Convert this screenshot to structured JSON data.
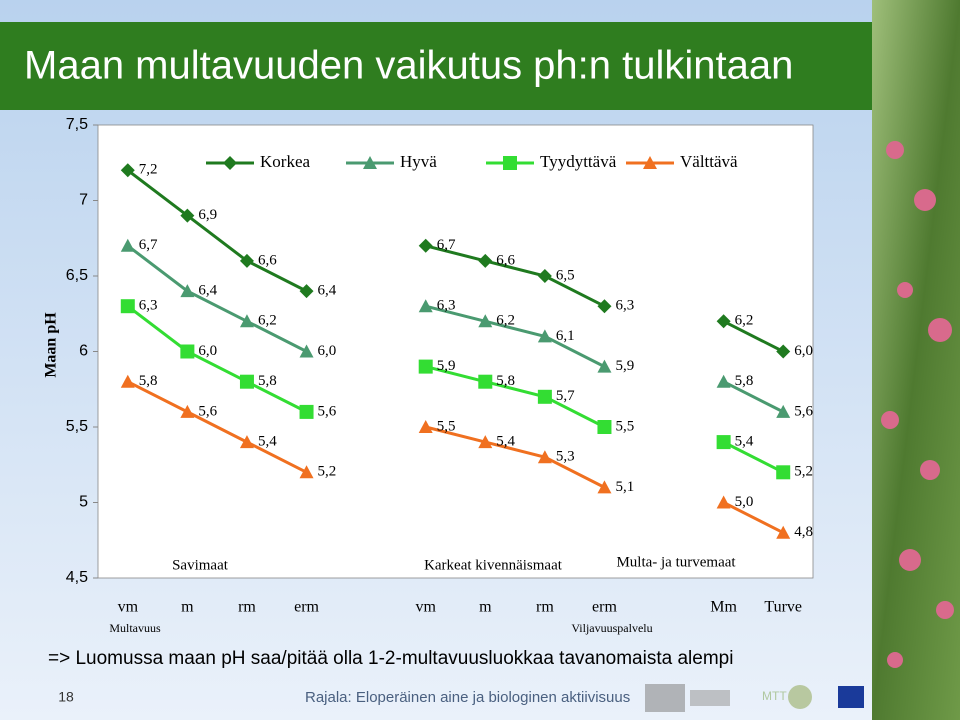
{
  "header": {
    "title": "Maan multavuuden vaikutus ph:n tulkintaan"
  },
  "chart_data": {
    "type": "line",
    "y_label": "Maan pH",
    "categories": [
      "vm",
      "m",
      "rm",
      "erm",
      null,
      "vm",
      "m",
      "rm",
      "erm",
      null,
      "Mm",
      "Turve"
    ],
    "ylim": [
      4.5,
      7.5
    ],
    "yticks": [
      {
        "value": 4.5,
        "label": "4,5"
      },
      5,
      {
        "value": 5.5,
        "label": "5,5"
      },
      6,
      {
        "value": 6.5,
        "label": "6,5"
      },
      7,
      {
        "value": 7.5,
        "label": "7,5"
      }
    ],
    "grid": false,
    "legend": "top",
    "series": [
      {
        "name": "Korkea",
        "color": "#1f7a1f",
        "marker": "diamond",
        "values": [
          7.2,
          6.9,
          6.6,
          6.4,
          null,
          6.7,
          6.6,
          6.5,
          6.3,
          null,
          6.2,
          6.0
        ],
        "value_labels": [
          "7,2",
          "6,9",
          "6,6",
          "6,4",
          null,
          "6,7",
          "6,6",
          "6,5",
          "6,3",
          null,
          "6,2",
          "6,0"
        ]
      },
      {
        "name": "Hyvä",
        "color": "#4a9a70",
        "marker": "triangle",
        "values": [
          6.7,
          6.4,
          6.2,
          6.0,
          null,
          6.3,
          6.2,
          6.1,
          5.9,
          null,
          5.8,
          5.6
        ],
        "value_labels": [
          "6,7",
          "6,4",
          "6,2",
          "6,0",
          null,
          "6,3",
          "6,2",
          "6,1",
          "5,9",
          null,
          "5,8",
          "5,6"
        ]
      },
      {
        "name": "Tyydyttävä",
        "color": "#33dd33",
        "marker": "square",
        "values": [
          6.3,
          6.0,
          5.8,
          5.6,
          null,
          5.9,
          5.8,
          5.7,
          5.5,
          null,
          5.4,
          5.2
        ],
        "value_labels": [
          "6,3",
          "6,0",
          "5,8",
          "5,6",
          null,
          "5,9",
          "5,8",
          "5,7",
          "5,5",
          null,
          "5,4",
          "5,2"
        ]
      },
      {
        "name": "Välttävä",
        "color": "#f07020",
        "marker": "triangle",
        "values": [
          5.8,
          5.6,
          5.4,
          5.2,
          null,
          5.5,
          5.4,
          5.3,
          5.1,
          null,
          5.0,
          4.8
        ],
        "value_labels": [
          "5,8",
          "5,6",
          "5,4",
          "5,2",
          null,
          "5,5",
          "5,4",
          "5,3",
          "5,1",
          null,
          "5,0",
          "4,8"
        ]
      }
    ],
    "annotations": [
      "Savimaat",
      "Karkeat kivennäismaat",
      "Multa- ja turvemaat",
      "Multavuus",
      "Viljavuuspalvelu"
    ]
  },
  "note": "=> Luomussa maan pH saa/pitää olla 1-2-multavuusluokkaa tavanomaista alempi",
  "footer": {
    "slide_number": "18",
    "source": "Rajala: Eloperäinen aine ja biologinen aktiivisuus",
    "logo_text": "MTT"
  }
}
